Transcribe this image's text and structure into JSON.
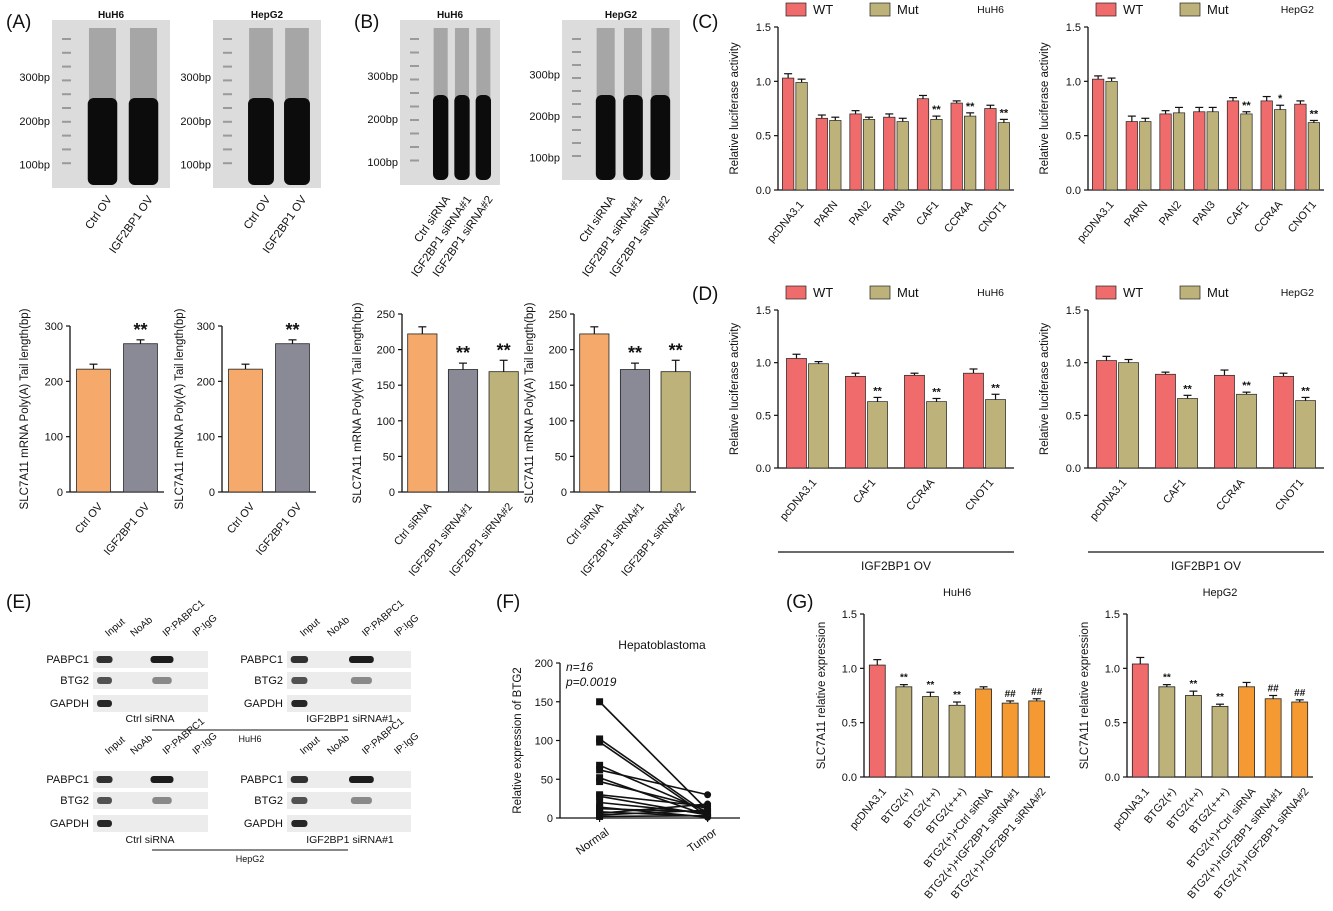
{
  "panel_letters": [
    "(A)",
    "(B)",
    "(C)",
    "(D)",
    "(E)",
    "(F)",
    "(G)"
  ],
  "colors": {
    "orange": "#f5a96a",
    "gray": "#8a8a96",
    "olive": "#bcb27a",
    "red": "#f06b6b",
    "orange_g": "#f59a32",
    "gel_bg": "#dcdcdc",
    "blot_bg": "#ececec"
  },
  "gels": {
    "A": [
      {
        "title": "HuH6",
        "markers": [
          "300bp",
          "200bp",
          "100bp"
        ],
        "lanes": [
          "Ctrl OV",
          "IGF2BP1 OV"
        ]
      },
      {
        "title": "HepG2",
        "markers": [
          "300bp",
          "200bp",
          "100bp"
        ],
        "lanes": [
          "Ctrl OV",
          "IGF2BP1 OV"
        ]
      }
    ],
    "B": [
      {
        "title": "HuH6",
        "markers": [
          "300bp",
          "200bp",
          "100bp"
        ],
        "lanes": [
          "Ctrl siRNA",
          "IGF2BP1 siRNA#1",
          "IGF2BP1 siRNA#2"
        ]
      },
      {
        "title": "HepG2",
        "markers": [
          "300bp",
          "200bp",
          "100bp"
        ],
        "lanes": [
          "Ctrl siRNA",
          "IGF2BP1 siRNA#1",
          "IGF2BP1 siRNA#2"
        ]
      }
    ]
  },
  "blots": {
    "row_labels": [
      "PABPC1",
      "BTG2",
      "GAPDH"
    ],
    "col_labels": [
      "Input",
      "NoAb",
      "IP:PABPC1",
      "IP:IgG"
    ],
    "groups": [
      "Ctrl siRNA",
      "IGF2BP1 siRNA#1"
    ],
    "cells": [
      "HuH6",
      "HepG2"
    ]
  },
  "chart_data": [
    {
      "id": "A1",
      "type": "bar",
      "ylabel": "SLC7A11 mRNA Poly(A) Tail length(bp)",
      "ylim": [
        0,
        300
      ],
      "yticks": [
        0,
        100,
        200,
        300
      ],
      "categories": [
        "Ctrl OV",
        "IGF2BP1 OV"
      ],
      "values": [
        222,
        268
      ],
      "errors": [
        9,
        7
      ],
      "bar_colors": [
        "orange",
        "gray"
      ],
      "annotations": [
        "",
        "**"
      ]
    },
    {
      "id": "A2",
      "type": "bar",
      "ylabel": "SLC7A11 mRNA Poly(A) Tail length(bp)",
      "ylim": [
        0,
        300
      ],
      "yticks": [
        0,
        100,
        200,
        300
      ],
      "categories": [
        "Ctrl OV",
        "IGF2BP1 OV"
      ],
      "values": [
        222,
        268
      ],
      "errors": [
        9,
        7
      ],
      "bar_colors": [
        "orange",
        "gray"
      ],
      "annotations": [
        "",
        "**"
      ]
    },
    {
      "id": "B1",
      "type": "bar",
      "ylabel": "SLC7A11 mRNA Poly(A) Tail length(bp)",
      "ylim": [
        0,
        250
      ],
      "yticks": [
        0,
        50,
        100,
        150,
        200,
        250
      ],
      "categories": [
        "Ctrl siRNA",
        "IGF2BP1 siRNA#1",
        "IGF2BP1 siRNA#2"
      ],
      "values": [
        222,
        172,
        169
      ],
      "errors": [
        10,
        9,
        16
      ],
      "bar_colors": [
        "orange",
        "gray",
        "olive"
      ],
      "annotations": [
        "",
        "**",
        "**"
      ]
    },
    {
      "id": "B2",
      "type": "bar",
      "ylabel": "SLC7A11 mRNA Poly(A) Tail length(bp)",
      "ylim": [
        0,
        250
      ],
      "yticks": [
        0,
        50,
        100,
        150,
        200,
        250
      ],
      "categories": [
        "Ctrl siRNA",
        "IGF2BP1 siRNA#1",
        "IGF2BP1 siRNA#2"
      ],
      "values": [
        222,
        172,
        169
      ],
      "errors": [
        10,
        9,
        16
      ],
      "bar_colors": [
        "orange",
        "gray",
        "olive"
      ],
      "annotations": [
        "",
        "**",
        "**"
      ]
    },
    {
      "id": "C1",
      "type": "bar",
      "subtitle": "HuH6",
      "ylabel": "Relative luciferase activity",
      "ylim": [
        0,
        1.5
      ],
      "yticks": [
        0.0,
        0.5,
        1.0,
        1.5
      ],
      "categories": [
        "pcDNA3.1",
        "PARN",
        "PAN2",
        "PAN3",
        "CAF1",
        "CCR4A",
        "CNOT1"
      ],
      "series": [
        {
          "name": "WT",
          "color": "red",
          "values": [
            1.03,
            0.66,
            0.7,
            0.67,
            0.84,
            0.8,
            0.75
          ],
          "errors": [
            0.04,
            0.03,
            0.03,
            0.03,
            0.03,
            0.02,
            0.03
          ],
          "annotations": [
            "",
            "",
            "",
            "",
            "",
            "",
            ""
          ]
        },
        {
          "name": "Mut",
          "color": "olive",
          "values": [
            0.99,
            0.64,
            0.65,
            0.63,
            0.65,
            0.68,
            0.62
          ],
          "errors": [
            0.03,
            0.03,
            0.02,
            0.03,
            0.03,
            0.03,
            0.03
          ],
          "annotations": [
            "",
            "",
            "",
            "",
            "**",
            "**",
            "**"
          ]
        }
      ]
    },
    {
      "id": "C2",
      "type": "bar",
      "subtitle": "HepG2",
      "ylabel": "Relative luciferase activity",
      "ylim": [
        0,
        1.5
      ],
      "yticks": [
        0.0,
        0.5,
        1.0,
        1.5
      ],
      "categories": [
        "pcDNA3.1",
        "PARN",
        "PAN2",
        "PAN3",
        "CAF1",
        "CCR4A",
        "CNOT1"
      ],
      "series": [
        {
          "name": "WT",
          "color": "red",
          "values": [
            1.02,
            0.63,
            0.7,
            0.72,
            0.82,
            0.82,
            0.79
          ],
          "errors": [
            0.03,
            0.05,
            0.03,
            0.04,
            0.03,
            0.04,
            0.03
          ],
          "annotations": [
            "",
            "",
            "",
            "",
            "",
            "",
            ""
          ]
        },
        {
          "name": "Mut",
          "color": "olive",
          "values": [
            1.0,
            0.63,
            0.71,
            0.72,
            0.7,
            0.74,
            0.62
          ],
          "errors": [
            0.03,
            0.03,
            0.05,
            0.04,
            0.02,
            0.04,
            0.02
          ],
          "annotations": [
            "",
            "",
            "",
            "",
            "**",
            "*",
            "**"
          ]
        }
      ]
    },
    {
      "id": "D1",
      "type": "bar",
      "subtitle": "HuH6",
      "ylabel": "Relative luciferase activity",
      "ylim": [
        0,
        1.5
      ],
      "yticks": [
        0.0,
        0.5,
        1.0,
        1.5
      ],
      "categories": [
        "pcDNA3.1",
        "CAF1",
        "CCR4A",
        "CNOT1"
      ],
      "group_label": "IGF2BP1 OV",
      "series": [
        {
          "name": "WT",
          "color": "red",
          "values": [
            1.04,
            0.87,
            0.88,
            0.9
          ],
          "errors": [
            0.04,
            0.03,
            0.02,
            0.04
          ],
          "annotations": [
            "",
            "",
            "",
            ""
          ]
        },
        {
          "name": "Mut",
          "color": "olive",
          "values": [
            0.99,
            0.63,
            0.63,
            0.65
          ],
          "errors": [
            0.02,
            0.04,
            0.03,
            0.05
          ],
          "annotations": [
            "",
            "**",
            "**",
            "**"
          ]
        }
      ]
    },
    {
      "id": "D2",
      "type": "bar",
      "subtitle": "HepG2",
      "ylabel": "Relative luciferase activity",
      "ylim": [
        0,
        1.5
      ],
      "yticks": [
        0.0,
        0.5,
        1.0,
        1.5
      ],
      "categories": [
        "pcDNA3.1",
        "CAF1",
        "CCR4A",
        "CNOT1"
      ],
      "group_label": "IGF2BP1 OV",
      "series": [
        {
          "name": "WT",
          "color": "red",
          "values": [
            1.02,
            0.89,
            0.88,
            0.87
          ],
          "errors": [
            0.04,
            0.02,
            0.05,
            0.03
          ],
          "annotations": [
            "",
            "",
            "",
            ""
          ]
        },
        {
          "name": "Mut",
          "color": "olive",
          "values": [
            1.0,
            0.66,
            0.7,
            0.64
          ],
          "errors": [
            0.03,
            0.03,
            0.02,
            0.03
          ],
          "annotations": [
            "",
            "**",
            "**",
            "**"
          ]
        }
      ]
    },
    {
      "id": "F",
      "type": "paired-line",
      "title": "Hepatoblastoma",
      "ylabel": "Relative expression of BTG2",
      "ylim": [
        0,
        200
      ],
      "yticks": [
        0,
        50,
        100,
        150,
        200
      ],
      "categories": [
        "Normal",
        "Tumor"
      ],
      "stats": [
        "n=16",
        "p=0.0019"
      ],
      "pairs": [
        [
          150,
          10
        ],
        [
          102,
          5
        ],
        [
          98,
          2
        ],
        [
          68,
          8
        ],
        [
          62,
          30
        ],
        [
          52,
          3
        ],
        [
          47,
          12
        ],
        [
          30,
          15
        ],
        [
          28,
          4
        ],
        [
          20,
          6
        ],
        [
          14,
          1
        ],
        [
          12,
          8
        ],
        [
          8,
          2
        ],
        [
          6,
          18
        ],
        [
          4,
          10
        ],
        [
          2,
          3
        ]
      ]
    },
    {
      "id": "G1",
      "type": "bar",
      "subtitle": "HuH6",
      "ylabel": "SLC7A11 relative expression",
      "ylim": [
        0,
        1.5
      ],
      "yticks": [
        0.0,
        0.5,
        1.0,
        1.5
      ],
      "categories": [
        "pcDNA3.1",
        "BTG2(+)",
        "BTG2(++)",
        "BTG2(+++)",
        "BTG2(+)+Ctrl siRNA",
        "BTG2(+)+IGF2BP1 siRNA#1",
        "BTG2(+)+IGF2BP1 siRNA#2"
      ],
      "values": [
        1.03,
        0.83,
        0.74,
        0.66,
        0.81,
        0.68,
        0.7
      ],
      "errors": [
        0.05,
        0.02,
        0.04,
        0.03,
        0.02,
        0.02,
        0.02
      ],
      "bar_colors": [
        "red",
        "olive",
        "olive",
        "olive",
        "orange_g",
        "orange_g",
        "orange_g"
      ],
      "annotations": [
        "",
        "**",
        "**",
        "**",
        "",
        "##",
        "##"
      ]
    },
    {
      "id": "G2",
      "type": "bar",
      "subtitle": "HepG2",
      "ylabel": "SLC7A11 relative expression",
      "ylim": [
        0,
        1.5
      ],
      "yticks": [
        0.0,
        0.5,
        1.0,
        1.5
      ],
      "categories": [
        "pcDNA3.1",
        "BTG2(+)",
        "BTG2(++)",
        "BTG2(+++)",
        "BTG2(+)+Ctrl siRNA",
        "BTG2(+)+IGF2BP1 siRNA#1",
        "BTG2(+)+IGF2BP1 siRNA#2"
      ],
      "values": [
        1.04,
        0.83,
        0.75,
        0.65,
        0.83,
        0.72,
        0.69
      ],
      "errors": [
        0.06,
        0.02,
        0.04,
        0.02,
        0.04,
        0.03,
        0.02
      ],
      "bar_colors": [
        "red",
        "olive",
        "olive",
        "olive",
        "orange_g",
        "orange_g",
        "orange_g"
      ],
      "annotations": [
        "",
        "**",
        "**",
        "**",
        "",
        "##",
        "##"
      ]
    }
  ]
}
